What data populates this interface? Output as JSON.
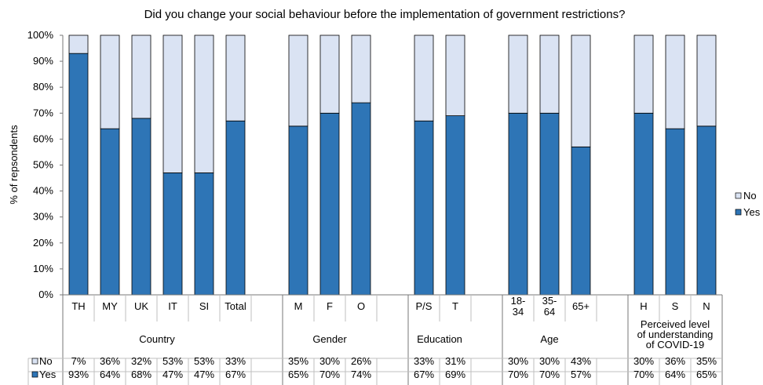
{
  "chart_data": {
    "type": "bar",
    "stacked": true,
    "title": "Did you change your social behaviour before the implementation of government restrictions?",
    "ylabel": "% of repsondents",
    "ylim": [
      0,
      100
    ],
    "y_ticks": [
      "0%",
      "10%",
      "20%",
      "30%",
      "40%",
      "50%",
      "60%",
      "70%",
      "80%",
      "90%",
      "100%"
    ],
    "grid": false,
    "legend_position": "right",
    "categories": [
      {
        "label": [
          "TH"
        ],
        "group": "Country"
      },
      {
        "label": [
          "MY"
        ],
        "group": "Country"
      },
      {
        "label": [
          "UK"
        ],
        "group": "Country"
      },
      {
        "label": [
          "IT"
        ],
        "group": "Country"
      },
      {
        "label": [
          "SI"
        ],
        "group": "Country"
      },
      {
        "label": [
          "Total"
        ],
        "group": "Country"
      },
      {
        "label": [],
        "group": "Country"
      },
      {
        "label": [
          "M"
        ],
        "group": "Gender"
      },
      {
        "label": [
          "F"
        ],
        "group": "Gender"
      },
      {
        "label": [
          "O"
        ],
        "group": "Gender"
      },
      {
        "label": [],
        "group": "Gender"
      },
      {
        "label": [
          "P/S"
        ],
        "group": "Education"
      },
      {
        "label": [
          "T"
        ],
        "group": "Education"
      },
      {
        "label": [],
        "group": "Education"
      },
      {
        "label": [
          "18-",
          "34"
        ],
        "group": "Age"
      },
      {
        "label": [
          "35-",
          "64"
        ],
        "group": "Age"
      },
      {
        "label": [
          "65+"
        ],
        "group": "Age"
      },
      {
        "label": [],
        "group": "Age"
      },
      {
        "label": [
          "H"
        ],
        "group": "Perceived"
      },
      {
        "label": [
          "S"
        ],
        "group": "Perceived"
      },
      {
        "label": [
          "N"
        ],
        "group": "Perceived"
      }
    ],
    "groups": [
      {
        "id": "Country",
        "label": [
          "Country"
        ]
      },
      {
        "id": "Gender",
        "label": [
          "Gender"
        ]
      },
      {
        "id": "Education",
        "label": [
          "Education"
        ]
      },
      {
        "id": "Age",
        "label": [
          "Age"
        ]
      },
      {
        "id": "Perceived",
        "label": [
          "Perceived level",
          "of understanding",
          "of COVID-19"
        ]
      }
    ],
    "series": [
      {
        "name": "No",
        "color": "#dae3f3",
        "values": [
          7,
          36,
          32,
          53,
          53,
          33,
          null,
          35,
          30,
          26,
          null,
          33,
          31,
          null,
          30,
          30,
          43,
          null,
          30,
          36,
          35
        ],
        "table": [
          "7%",
          "36%",
          "32%",
          "53%",
          "53%",
          "33%",
          "",
          "35%",
          "30%",
          "26%",
          "",
          "33%",
          "31%",
          "",
          "30%",
          "30%",
          "43%",
          "",
          "30%",
          "36%",
          "35%"
        ]
      },
      {
        "name": "Yes",
        "color": "#2e75b6",
        "values": [
          93,
          64,
          68,
          47,
          47,
          67,
          null,
          65,
          70,
          74,
          null,
          67,
          69,
          null,
          70,
          70,
          57,
          null,
          70,
          64,
          65
        ],
        "table": [
          "93%",
          "64%",
          "68%",
          "47%",
          "47%",
          "67%",
          "",
          "65%",
          "70%",
          "74%",
          "",
          "67%",
          "69%",
          "",
          "70%",
          "70%",
          "57%",
          "",
          "70%",
          "64%",
          "65%"
        ]
      }
    ]
  }
}
